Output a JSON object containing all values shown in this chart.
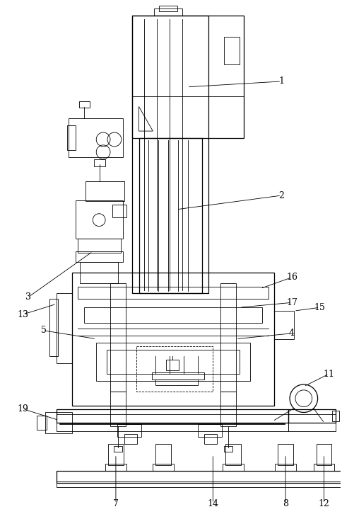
{
  "background_color": "#ffffff",
  "line_color": "#000000",
  "fig_width": 4.85,
  "fig_height": 7.33,
  "dpi": 100
}
